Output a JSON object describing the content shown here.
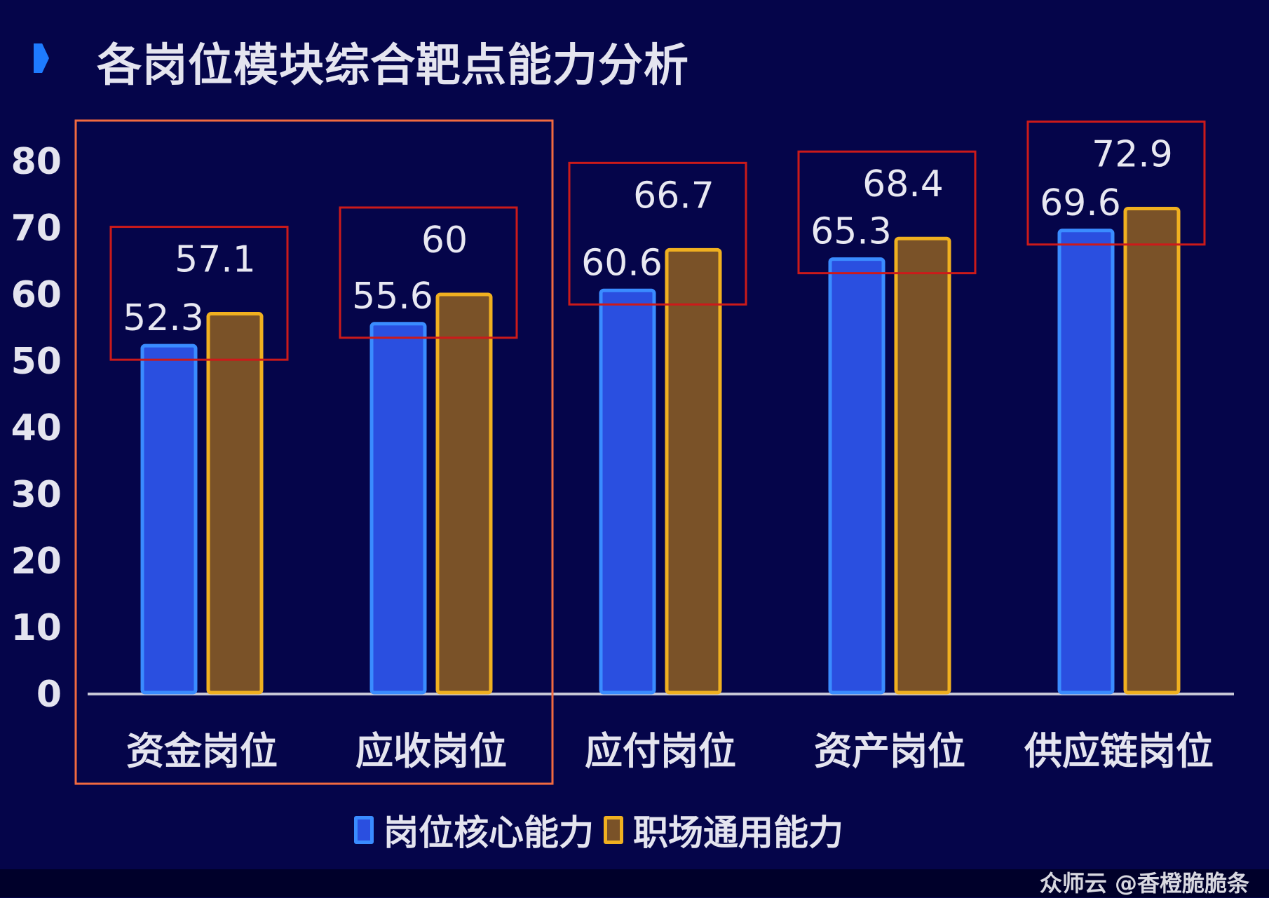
{
  "header": {
    "title": "各岗位模块综合靶点能力分析"
  },
  "chart_data": {
    "type": "bar",
    "title": "各岗位模块综合靶点能力分析",
    "categories": [
      "资金岗位",
      "应收岗位",
      "应付岗位",
      "资产岗位",
      "供应链岗位"
    ],
    "series": [
      {
        "name": "岗位核心能力",
        "values": [
          52.3,
          55.6,
          60.6,
          65.3,
          69.6
        ],
        "labels": [
          "52.3",
          "55.6",
          "60.6",
          "65.3",
          "69.6"
        ],
        "color": "#2a4fe0",
        "border": "#3a8cff"
      },
      {
        "name": "职场通用能力",
        "values": [
          57.1,
          60,
          66.7,
          68.4,
          72.9
        ],
        "labels": [
          "57.1",
          "60",
          "66.7",
          "68.4",
          "72.9"
        ],
        "color": "#7a5228",
        "border": "#f0b020"
      }
    ],
    "yticks": [
      "0",
      "10",
      "20",
      "30",
      "40",
      "50",
      "60",
      "70",
      "80"
    ],
    "ylim": [
      0,
      80
    ],
    "grid": false,
    "legend": "bottom",
    "highlight_color": "#cc1a1a",
    "group_highlight_color": "#f26a40"
  },
  "watermark": "众师云 @香橙脆脆条"
}
